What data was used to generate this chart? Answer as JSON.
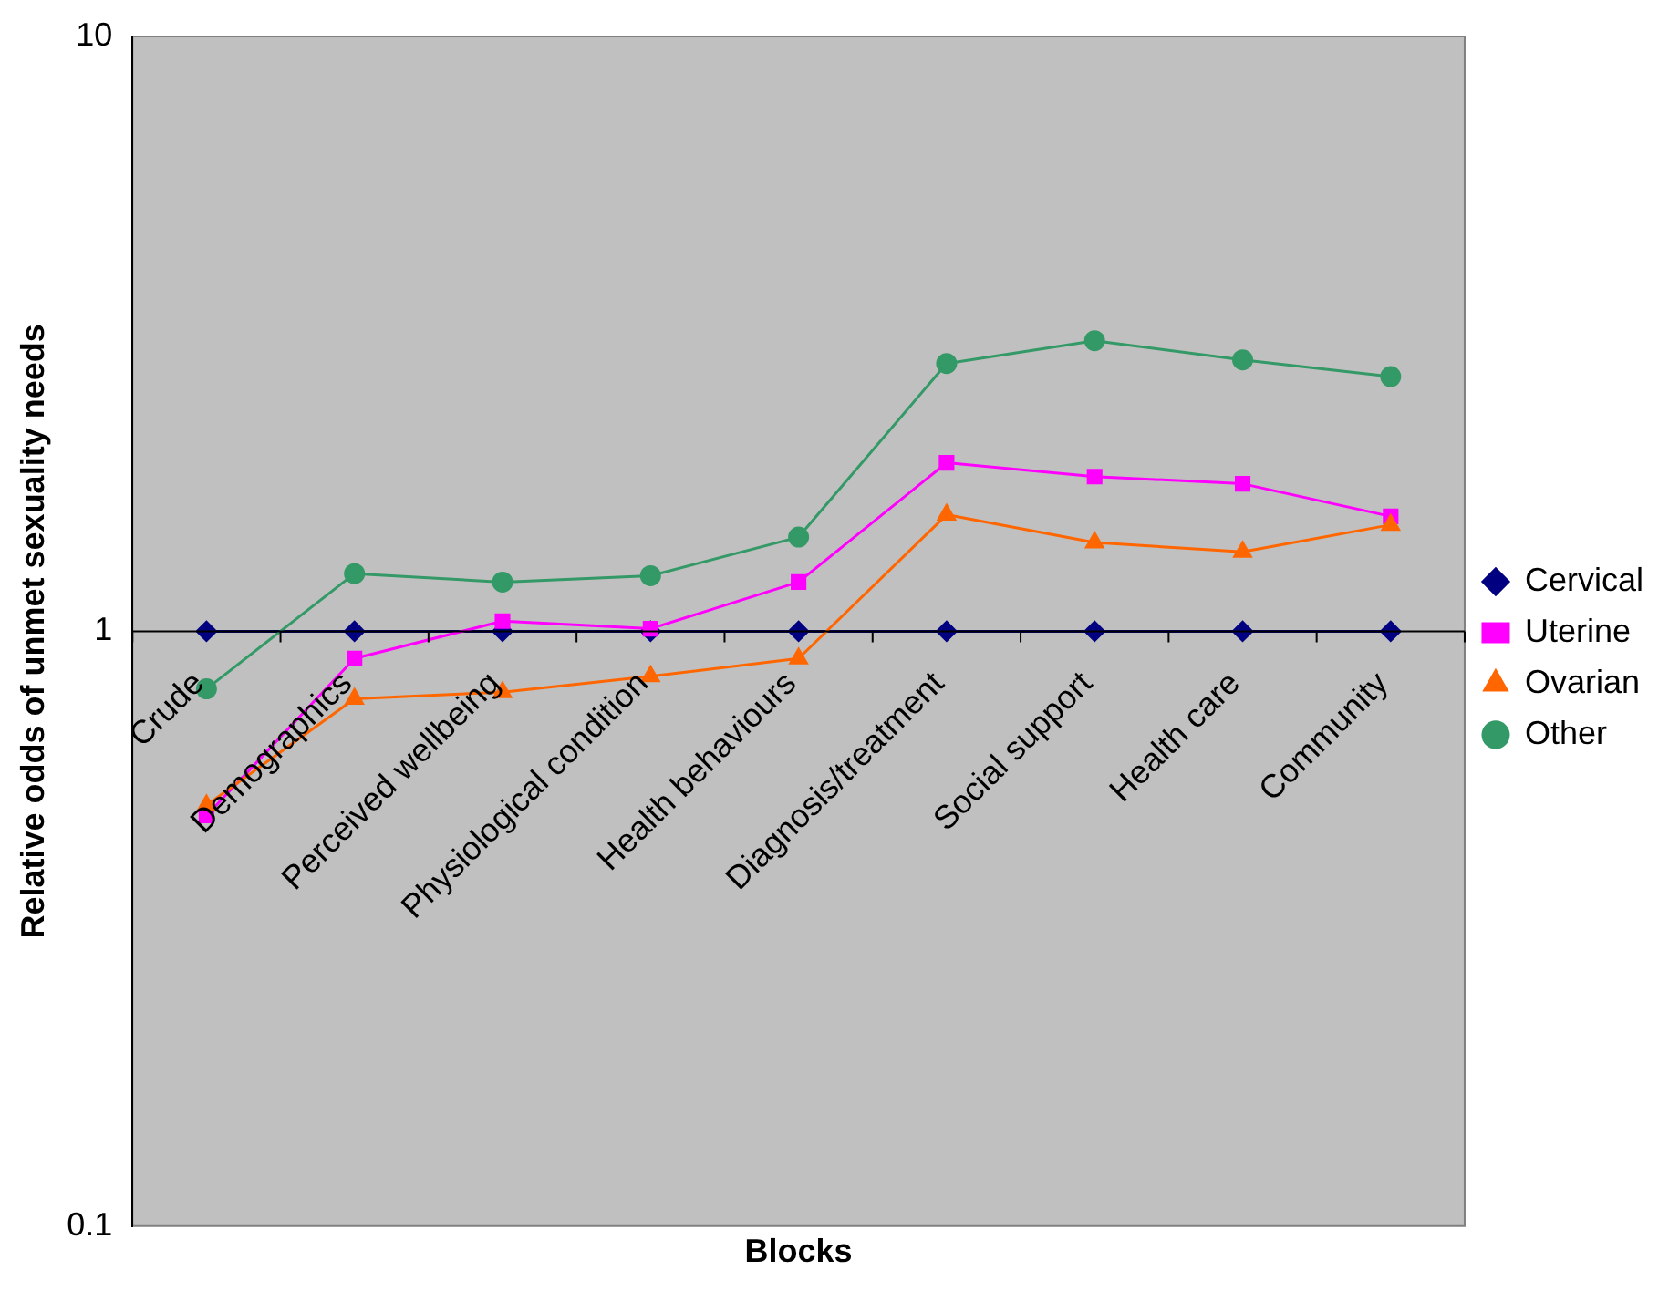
{
  "chart_data": {
    "type": "line",
    "xlabel": "Blocks",
    "ylabel": "Relative odds of unmet sexuality needs",
    "categories": [
      "Crude",
      "Demographics",
      "Perceived wellbeing",
      "Physiological condition",
      "Health behaviours",
      "Diagnosis/treatment",
      "Social support",
      "Health care",
      "Community"
    ],
    "series": [
      {
        "name": "Cervical",
        "color": "#000080",
        "marker": "diamond",
        "values": [
          1,
          1,
          1,
          1,
          1,
          1,
          1,
          1,
          1
        ]
      },
      {
        "name": "Uterine",
        "color": "#ff00ff",
        "marker": "square",
        "values": [
          0.49,
          0.9,
          1.04,
          1.01,
          1.21,
          1.92,
          1.82,
          1.77,
          1.56
        ]
      },
      {
        "name": "Ovarian",
        "color": "#ff6600",
        "marker": "triangle",
        "values": [
          0.51,
          0.77,
          0.79,
          0.84,
          0.9,
          1.57,
          1.41,
          1.36,
          1.51
        ]
      },
      {
        "name": "Other",
        "color": "#339966",
        "marker": "circle",
        "values": [
          0.8,
          1.25,
          1.21,
          1.24,
          1.44,
          2.82,
          3.08,
          2.86,
          2.68
        ]
      }
    ],
    "log": "y",
    "ylim": [
      0.1,
      10
    ],
    "yticks": [
      0.1,
      1,
      10
    ],
    "grid": false,
    "legend": "right"
  }
}
